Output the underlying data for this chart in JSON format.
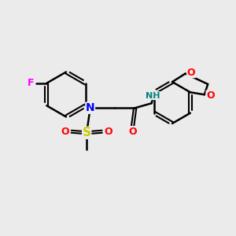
{
  "background_color": "#ebebeb",
  "atom_colors": {
    "C": "#000000",
    "N": "#0000ff",
    "O": "#ff0000",
    "S": "#cccc00",
    "F": "#ff00ff",
    "H": "#008080"
  },
  "bond_color": "#000000",
  "bond_width": 1.8,
  "figsize": [
    3.0,
    3.0
  ],
  "dpi": 100
}
